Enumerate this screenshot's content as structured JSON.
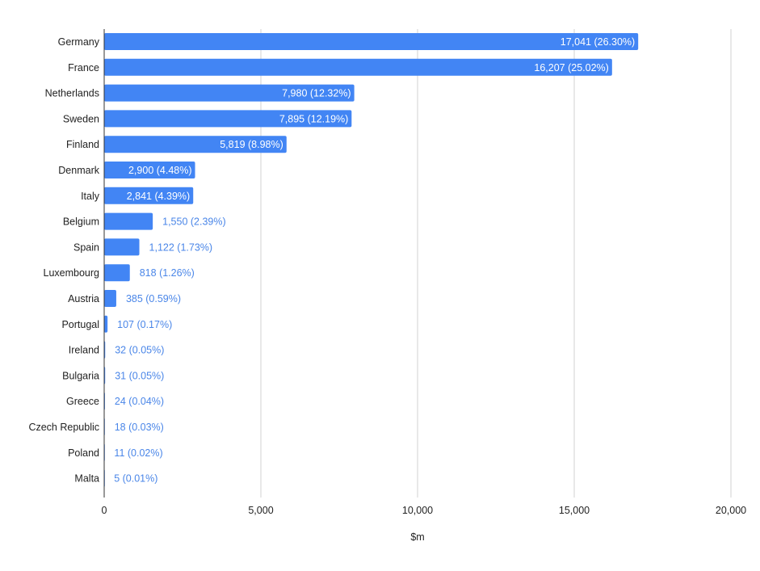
{
  "chart_data": {
    "type": "bar",
    "orientation": "horizontal",
    "title": "",
    "xlabel": "$m",
    "ylabel": "",
    "xlim": [
      0,
      20000
    ],
    "xticks": [
      0,
      5000,
      10000,
      15000,
      20000
    ],
    "xtick_labels": [
      "0",
      "5,000",
      "10,000",
      "15,000",
      "20,000"
    ],
    "grid": true,
    "legend": "none",
    "bar_color": "#4285f4",
    "inside_label_color": "#ffffff",
    "outside_label_color": "#4a86e8",
    "categories": [
      "Germany",
      "France",
      "Netherlands",
      "Sweden",
      "Finland",
      "Denmark",
      "Italy",
      "Belgium",
      "Spain",
      "Luxembourg",
      "Austria",
      "Portugal",
      "Ireland",
      "Bulgaria",
      "Greece",
      "Czech Republic",
      "Poland",
      "Malta"
    ],
    "values": [
      17041,
      16207,
      7980,
      7895,
      5819,
      2900,
      2841,
      1550,
      1122,
      818,
      385,
      107,
      32,
      31,
      24,
      18,
      11,
      5
    ],
    "data_labels": [
      "17,041 (26.30%)",
      "16,207 (25.02%)",
      "7,980 (12.32%)",
      "7,895 (12.19%)",
      "5,819 (8.98%)",
      "2,900 (4.48%)",
      "2,841 (4.39%)",
      "1,550 (2.39%)",
      "1,122 (1.73%)",
      "818 (1.26%)",
      "385 (0.59%)",
      "107 (0.17%)",
      "32 (0.05%)",
      "31 (0.05%)",
      "24 (0.04%)",
      "18 (0.03%)",
      "11 (0.02%)",
      "5 (0.01%)"
    ]
  }
}
